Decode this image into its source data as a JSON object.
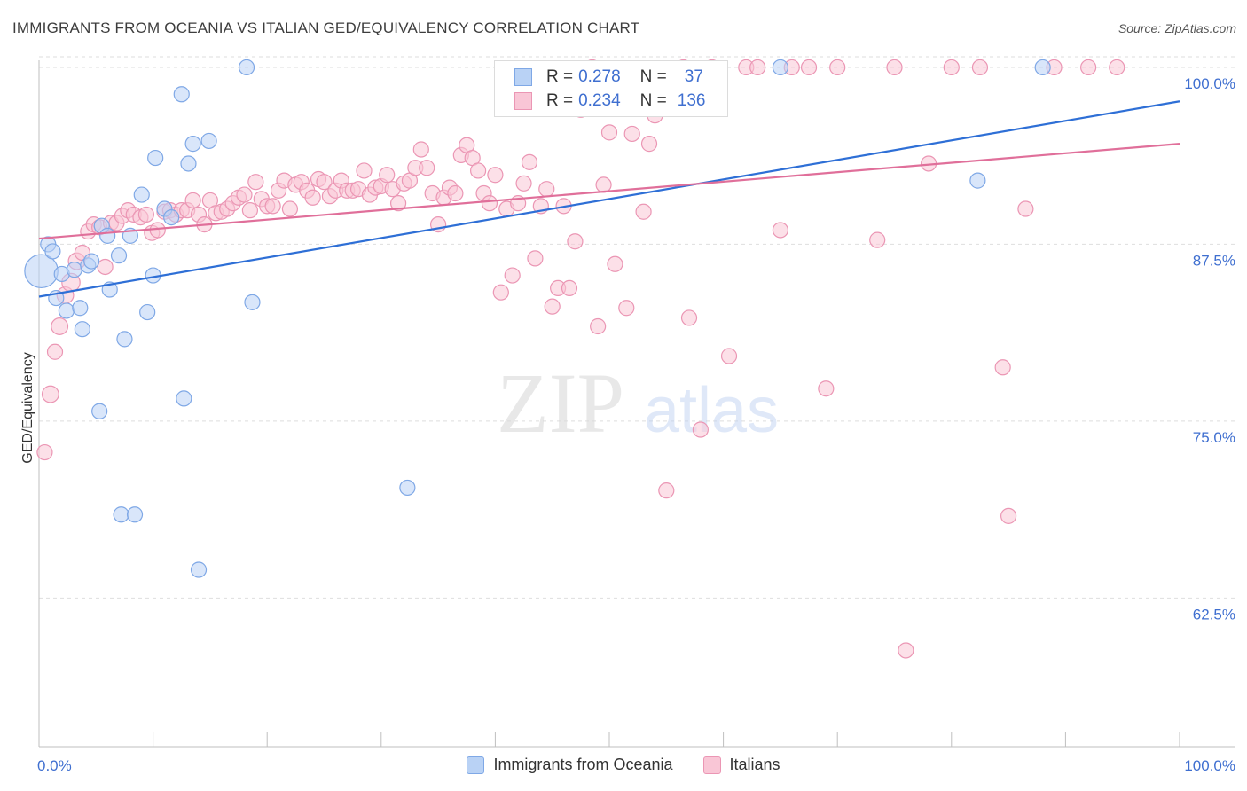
{
  "title": "IMMIGRANTS FROM OCEANIA VS ITALIAN GED/EQUIVALENCY CORRELATION CHART",
  "source": "Source: ZipAtlas.com",
  "watermark": {
    "zip": "ZIP",
    "atlas": "atlas"
  },
  "stats_box": {
    "rows": [
      {
        "r_label": "R =",
        "r_value": "0.278",
        "n_label": "N =",
        "n_value": "37",
        "color": "#7fa8e6",
        "fill": "#b9d2f5"
      },
      {
        "r_label": "R =",
        "r_value": "0.234",
        "n_label": "N =",
        "n_value": "136",
        "color": "#eb96b4",
        "fill": "#f9c6d6"
      }
    ]
  },
  "legend": {
    "items": [
      {
        "label": "Immigrants from Oceania"
      },
      {
        "label": "Italians"
      }
    ]
  },
  "chart_data": {
    "type": "scatter",
    "title": "IMMIGRANTS FROM OCEANIA VS ITALIAN GED/EQUIVALENCY CORRELATION CHART",
    "xlabel": "",
    "ylabel": "GED/Equivalency",
    "xlim": [
      0,
      100
    ],
    "ylim": [
      52,
      101.5
    ],
    "x_tick_labels": [
      "0.0%",
      "100.0%"
    ],
    "y_ticks": [
      62.5,
      75.0,
      87.5,
      100.0
    ],
    "y_tick_labels": [
      "62.5%",
      "75.0%",
      "87.5%",
      "100.0%"
    ],
    "grid": "horizontal-dashed",
    "legend_position": "bottom",
    "colors": {
      "blue_stroke": "#7fa8e6",
      "blue_fill": "#b9d2f5",
      "blue_line": "#2e6fd6",
      "pink_stroke": "#eb96b4",
      "pink_fill": "#f9c6d6",
      "pink_line": "#e06f9a",
      "tick_label": "#3f6fd0"
    },
    "series": [
      {
        "name": "Immigrants from Oceania",
        "trend": [
          [
            0,
            83.8
          ],
          [
            100,
            97.6
          ]
        ],
        "points": [
          [
            0.2,
            85.6,
            2.2
          ],
          [
            0.8,
            87.5,
            1
          ],
          [
            1.2,
            87.0,
            1
          ],
          [
            1.5,
            83.7,
            1
          ],
          [
            2.0,
            85.4,
            1
          ],
          [
            2.4,
            82.8,
            1
          ],
          [
            3.1,
            85.7,
            1
          ],
          [
            3.6,
            83.0,
            1
          ],
          [
            3.8,
            81.5,
            1
          ],
          [
            4.3,
            86.0,
            1
          ],
          [
            4.6,
            86.3,
            1
          ],
          [
            5.5,
            88.8,
            1
          ],
          [
            6.0,
            88.1,
            1
          ],
          [
            6.2,
            84.3,
            1
          ],
          [
            7.0,
            86.7,
            1
          ],
          [
            7.5,
            80.8,
            1
          ],
          [
            8.0,
            88.1,
            1
          ],
          [
            9.0,
            91.0,
            1
          ],
          [
            9.5,
            82.7,
            1
          ],
          [
            10.0,
            85.3,
            1
          ],
          [
            10.2,
            93.6,
            1
          ],
          [
            11.0,
            90.0,
            1
          ],
          [
            11.6,
            89.4,
            1
          ],
          [
            12.5,
            98.1,
            1
          ],
          [
            12.7,
            76.6,
            1
          ],
          [
            13.1,
            93.2,
            1
          ],
          [
            13.5,
            94.6,
            1
          ],
          [
            14.0,
            64.5,
            1
          ],
          [
            14.9,
            94.8,
            1
          ],
          [
            5.3,
            75.7,
            1
          ],
          [
            7.2,
            68.4,
            1
          ],
          [
            8.4,
            68.4,
            1
          ],
          [
            18.2,
            100.0,
            1
          ],
          [
            18.7,
            83.4,
            1
          ],
          [
            32.3,
            70.3,
            1
          ],
          [
            65.0,
            100.0,
            1
          ],
          [
            82.3,
            92.0,
            1
          ],
          [
            88.0,
            100.0,
            1
          ]
        ]
      },
      {
        "name": "Italians",
        "trend": [
          [
            0,
            87.9
          ],
          [
            100,
            94.6
          ]
        ],
        "points": [
          [
            0.5,
            72.8,
            1
          ],
          [
            1.0,
            76.9,
            1.1
          ],
          [
            1.4,
            79.9,
            1
          ],
          [
            1.8,
            81.7,
            1.1
          ],
          [
            2.3,
            83.9,
            1.1
          ],
          [
            2.8,
            84.8,
            1.2
          ],
          [
            3.3,
            86.3,
            1.1
          ],
          [
            3.8,
            86.9,
            1
          ],
          [
            4.3,
            88.4,
            1
          ],
          [
            4.8,
            88.9,
            1
          ],
          [
            5.3,
            88.7,
            1
          ],
          [
            5.8,
            85.9,
            1
          ],
          [
            6.3,
            89.0,
            1
          ],
          [
            6.8,
            89.0,
            1
          ],
          [
            7.3,
            89.5,
            1
          ],
          [
            7.8,
            89.9,
            1
          ],
          [
            8.3,
            89.6,
            1
          ],
          [
            8.9,
            89.4,
            1
          ],
          [
            9.4,
            89.6,
            1
          ],
          [
            9.9,
            88.3,
            1
          ],
          [
            10.4,
            88.5,
            1
          ],
          [
            11.0,
            89.8,
            1
          ],
          [
            11.5,
            89.9,
            1
          ],
          [
            12.0,
            89.6,
            1
          ],
          [
            12.5,
            89.9,
            1
          ],
          [
            13.0,
            89.9,
            1
          ],
          [
            13.5,
            90.6,
            1
          ],
          [
            14.0,
            89.6,
            1
          ],
          [
            14.5,
            88.9,
            1
          ],
          [
            15.0,
            90.6,
            1
          ],
          [
            15.5,
            89.7,
            1
          ],
          [
            16.0,
            89.8,
            1
          ],
          [
            16.5,
            90.0,
            1
          ],
          [
            17.0,
            90.4,
            1
          ],
          [
            17.5,
            90.8,
            1
          ],
          [
            18.0,
            91.0,
            1
          ],
          [
            18.5,
            89.9,
            1
          ],
          [
            19.0,
            91.9,
            1
          ],
          [
            19.5,
            90.7,
            1
          ],
          [
            20.0,
            90.2,
            1
          ],
          [
            20.5,
            90.2,
            1
          ],
          [
            21.0,
            91.3,
            1
          ],
          [
            21.5,
            92.0,
            1
          ],
          [
            22.0,
            90.0,
            1
          ],
          [
            22.5,
            91.7,
            1
          ],
          [
            23.0,
            91.9,
            1
          ],
          [
            23.5,
            91.3,
            1
          ],
          [
            24.0,
            90.8,
            1
          ],
          [
            24.5,
            92.1,
            1
          ],
          [
            25.0,
            91.9,
            1
          ],
          [
            25.5,
            90.9,
            1
          ],
          [
            26.0,
            91.3,
            1
          ],
          [
            26.5,
            92.0,
            1
          ],
          [
            27.0,
            91.3,
            1
          ],
          [
            27.5,
            91.3,
            1
          ],
          [
            28.0,
            91.4,
            1
          ],
          [
            28.5,
            92.7,
            1
          ],
          [
            29.0,
            91.0,
            1
          ],
          [
            29.5,
            91.5,
            1
          ],
          [
            30.0,
            91.6,
            1
          ],
          [
            30.5,
            92.4,
            1
          ],
          [
            31.0,
            91.4,
            1
          ],
          [
            31.5,
            90.4,
            1
          ],
          [
            32.0,
            91.8,
            1
          ],
          [
            32.5,
            92.0,
            1
          ],
          [
            33.0,
            92.9,
            1
          ],
          [
            33.5,
            94.2,
            1
          ],
          [
            34.0,
            92.9,
            1
          ],
          [
            34.5,
            91.1,
            1
          ],
          [
            35.0,
            88.9,
            1
          ],
          [
            35.5,
            90.8,
            1
          ],
          [
            36.0,
            91.5,
            1
          ],
          [
            36.5,
            91.1,
            1
          ],
          [
            37.0,
            93.8,
            1
          ],
          [
            37.5,
            94.5,
            1
          ],
          [
            38.0,
            93.6,
            1
          ],
          [
            38.5,
            92.7,
            1
          ],
          [
            39.0,
            91.1,
            1
          ],
          [
            39.5,
            90.4,
            1
          ],
          [
            40.0,
            92.4,
            1
          ],
          [
            40.5,
            84.1,
            1
          ],
          [
            41.0,
            90.0,
            1
          ],
          [
            41.5,
            85.3,
            1
          ],
          [
            42.0,
            90.4,
            1
          ],
          [
            42.5,
            91.8,
            1
          ],
          [
            43.0,
            93.3,
            1
          ],
          [
            43.5,
            86.5,
            1
          ],
          [
            44.0,
            90.2,
            1
          ],
          [
            44.5,
            91.4,
            1
          ],
          [
            45.0,
            83.1,
            1
          ],
          [
            45.5,
            84.4,
            1
          ],
          [
            46.0,
            90.2,
            1
          ],
          [
            46.5,
            84.4,
            1
          ],
          [
            47.0,
            87.7,
            1
          ],
          [
            47.5,
            97.0,
            1
          ],
          [
            48.0,
            98.6,
            1
          ],
          [
            48.5,
            100.0,
            1
          ],
          [
            49.0,
            81.7,
            1
          ],
          [
            49.5,
            91.7,
            1
          ],
          [
            50.0,
            95.4,
            1
          ],
          [
            50.5,
            86.1,
            1
          ],
          [
            51.5,
            83.0,
            1
          ],
          [
            52.0,
            95.3,
            1
          ],
          [
            53.0,
            89.8,
            1
          ],
          [
            53.5,
            94.6,
            1
          ],
          [
            54.0,
            96.6,
            1
          ],
          [
            54.5,
            97.8,
            1
          ],
          [
            55.0,
            70.1,
            1
          ],
          [
            56.5,
            100.0,
            1
          ],
          [
            57.0,
            82.3,
            1
          ],
          [
            58.0,
            74.4,
            1
          ],
          [
            59.0,
            100.0,
            1
          ],
          [
            60.5,
            79.6,
            1
          ],
          [
            62.0,
            100.0,
            1
          ],
          [
            63.0,
            100.0,
            1
          ],
          [
            65.0,
            88.5,
            1
          ],
          [
            66.0,
            100.0,
            1
          ],
          [
            67.5,
            100.0,
            1
          ],
          [
            69.0,
            77.3,
            1
          ],
          [
            70.0,
            100.0,
            1
          ],
          [
            73.5,
            87.8,
            1
          ],
          [
            75.0,
            100.0,
            1
          ],
          [
            76.0,
            58.8,
            1
          ],
          [
            78.0,
            93.2,
            1
          ],
          [
            80.0,
            100.0,
            1
          ],
          [
            82.5,
            100.0,
            1
          ],
          [
            84.5,
            78.8,
            1
          ],
          [
            85.0,
            68.3,
            1
          ],
          [
            86.5,
            90.0,
            1
          ],
          [
            89.0,
            100.0,
            1
          ],
          [
            92.0,
            100.0,
            1
          ],
          [
            94.5,
            100.0,
            1
          ]
        ]
      }
    ]
  }
}
